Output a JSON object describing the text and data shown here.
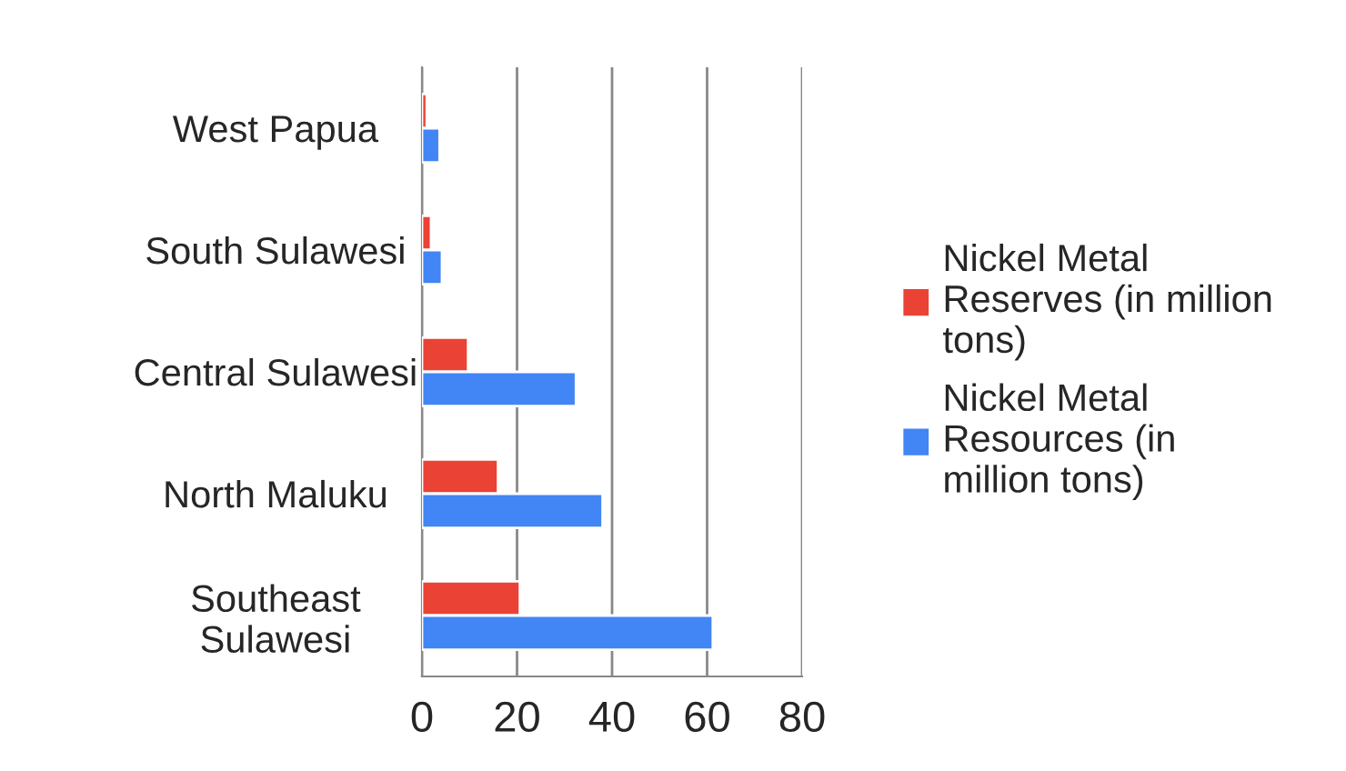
{
  "chart_data": {
    "type": "bar",
    "orientation": "horizontal",
    "categories": [
      "West Papua",
      "South Sulawesi",
      "Central Sulawesi",
      "North Maluku",
      "Southeast\nSulawesi"
    ],
    "series": [
      {
        "name": "Nickel Metal\nReserves (in million\ntons)",
        "color": "#ea4335",
        "values": [
          1.0,
          1.9,
          9.7,
          16.0,
          20.6
        ]
      },
      {
        "name": "Nickel Metal\nResources (in\nmillion tons)",
        "color": "#4285f4",
        "values": [
          3.7,
          4.2,
          32.4,
          38.0,
          61.2
        ]
      }
    ],
    "xlim": [
      0,
      80
    ],
    "xticks": [
      0,
      20,
      40,
      60,
      80
    ],
    "grid": "x",
    "legend": "right"
  }
}
